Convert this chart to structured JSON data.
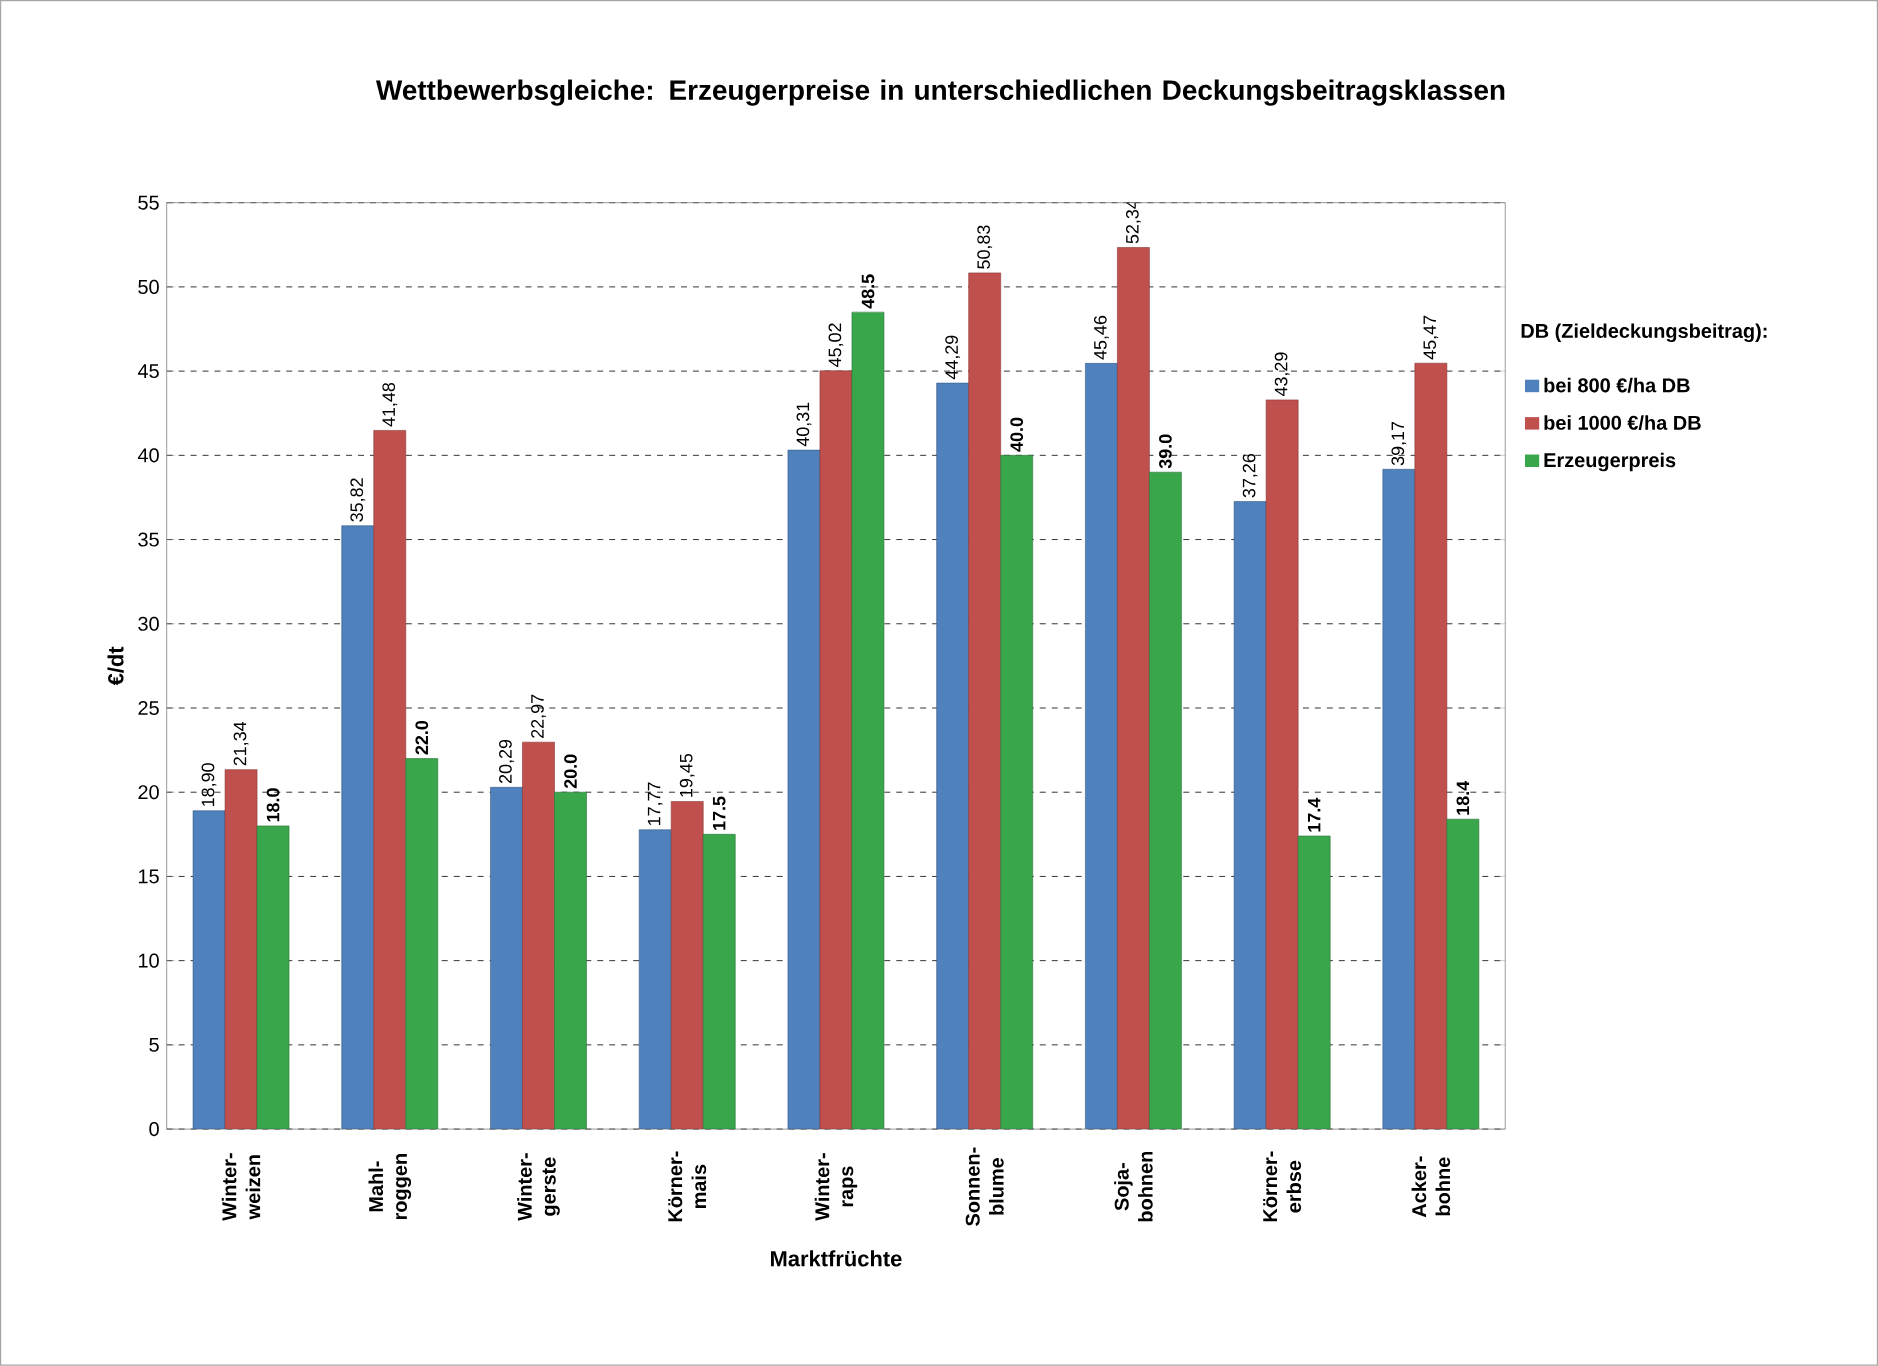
{
  "chart_data": {
    "type": "bar",
    "title": "Wettbewerbsgleiche: Erzeugerpreise in unterschiedlichen Deckungsbeitragsklassen",
    "xlabel": "Marktfrüchte",
    "ylabel": "€/dt",
    "legend_title": "DB (Zieldeckungsbeitrag):",
    "categories": [
      "Winter- weizen",
      "Mahl- roggen",
      "Winter- gerste",
      "Körner- mais",
      "Winter- raps",
      "Sonnen- blume",
      "Soja- bohnen",
      "Körner- erbse",
      "Acker- bohne"
    ],
    "series": [
      {
        "name": "bei 800 €/ha DB",
        "color": "#4f81bd",
        "values": [
          18.9,
          35.82,
          20.29,
          17.77,
          40.31,
          44.29,
          45.46,
          37.26,
          39.17
        ],
        "value_labels": [
          "18,90",
          "35,82",
          "20,29",
          "17,77",
          "40,31",
          "44,29",
          "45,46",
          "37,26",
          "39,17"
        ]
      },
      {
        "name": "bei 1000 €/ha DB",
        "color": "#c0504d",
        "values": [
          21.34,
          41.48,
          22.97,
          19.45,
          45.02,
          50.83,
          52.34,
          43.29,
          45.47
        ],
        "value_labels": [
          "21,34",
          "41,48",
          "22,97",
          "19,45",
          "45,02",
          "50,83",
          "52,34",
          "43,29",
          "45,47"
        ]
      },
      {
        "name": "Erzeugerpreis",
        "color": "#3aa64c",
        "values": [
          18.0,
          22.0,
          20.0,
          17.5,
          48.5,
          40.0,
          39.0,
          17.4,
          18.4
        ],
        "value_labels": [
          "**18.0**",
          "**22.0**",
          "**20.0**",
          "**17.5**",
          "**48.5**",
          "**40.0**",
          "**39.0**",
          "**17.4**",
          "**18.4**"
        ]
      }
    ],
    "ylim": [
      0,
      55
    ],
    "yticks": [
      0,
      5,
      10,
      15,
      20,
      25,
      30,
      35,
      40,
      45,
      50,
      55
    ],
    "grid": "y",
    "legend": "right"
  }
}
